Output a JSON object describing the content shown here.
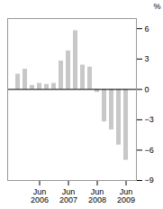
{
  "chart_data": {
    "type": "bar",
    "categories": [
      null,
      null,
      null,
      "Jun\n2006",
      null,
      null,
      null,
      "Jun\n2007",
      null,
      null,
      null,
      "Jun\n2008",
      null,
      null,
      null,
      "Jun\n2009"
    ],
    "values": [
      1.5,
      2.0,
      0.4,
      0.6,
      0.5,
      0.6,
      2.8,
      3.8,
      5.8,
      2.4,
      2.2,
      -0.3,
      -3.2,
      -4.0,
      -5.5,
      -7.0
    ],
    "color": "#c8c8c8",
    "ylabel": "%",
    "ylim": [
      -9,
      7
    ],
    "yticks": [
      {
        "value": -9,
        "label": "−9"
      },
      {
        "value": -6,
        "label": "−6"
      },
      {
        "value": -3,
        "label": "−3"
      },
      0,
      3,
      6
    ],
    "grid": false
  }
}
